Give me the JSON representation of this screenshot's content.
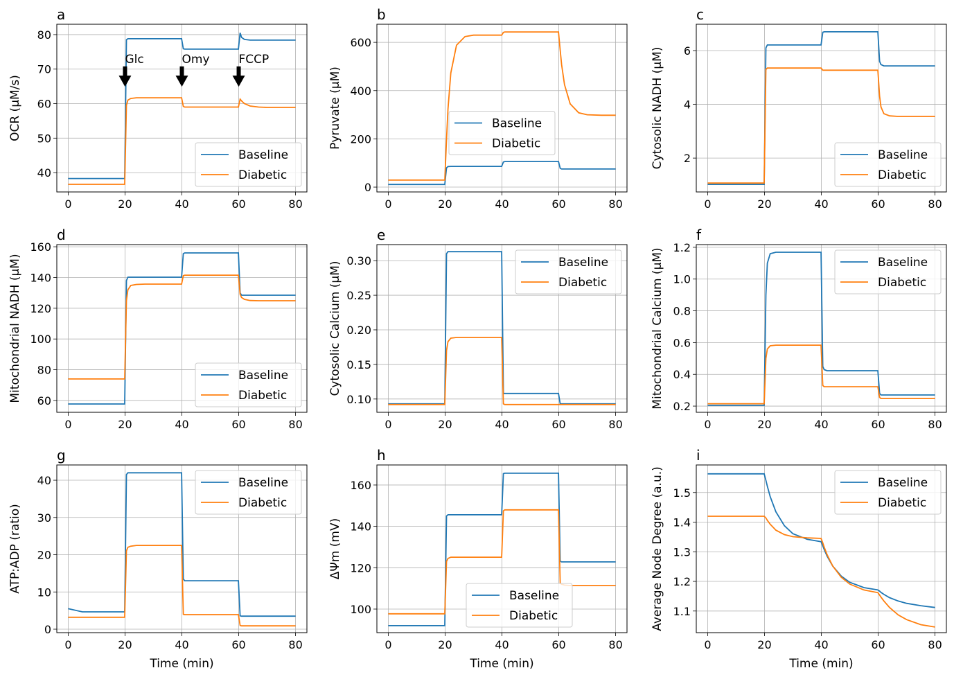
{
  "colors": {
    "Baseline": "#1f77b4",
    "Diabetic": "#ff7f0e",
    "grid": "#b0b0b0"
  },
  "shared_x": [
    0,
    5,
    10,
    15,
    19.9,
    20.5,
    21,
    22,
    24,
    27,
    30,
    35,
    39.9,
    40.5,
    41,
    42,
    44,
    47,
    50,
    55,
    59.9,
    60.5,
    61,
    62,
    64,
    67,
    70,
    75,
    80
  ],
  "chart_data": [
    {
      "panel": "a",
      "type": "line",
      "ylabel": "OCR (μM/s)",
      "xlabel": "",
      "xlim": [
        -4,
        84
      ],
      "ylim": [
        34.4,
        83
      ],
      "xticks": [
        0,
        20,
        40,
        60,
        80
      ],
      "yticks": [
        40,
        50,
        60,
        70,
        80
      ],
      "yticklabels": [
        "40",
        "50",
        "60",
        "70",
        "80"
      ],
      "grid": true,
      "legend": "lower right",
      "series": [
        {
          "name": "Baseline",
          "values": [
            38.3,
            38.3,
            38.3,
            38.3,
            38.3,
            78.5,
            78.8,
            78.8,
            78.8,
            78.8,
            78.8,
            78.8,
            78.8,
            75.9,
            75.8,
            75.8,
            75.8,
            75.8,
            75.8,
            75.8,
            75.8,
            80.5,
            79.2,
            78.6,
            78.4,
            78.4,
            78.4,
            78.4,
            78.4
          ]
        },
        {
          "name": "Diabetic",
          "values": [
            36.6,
            36.6,
            36.6,
            36.6,
            36.6,
            59.5,
            61,
            61.5,
            61.7,
            61.7,
            61.7,
            61.7,
            61.7,
            59.2,
            59,
            59,
            59,
            59,
            59,
            59,
            59,
            61.3,
            60.8,
            60,
            59.3,
            59,
            58.9,
            58.9,
            58.9
          ]
        }
      ],
      "annotations": [
        {
          "text": "Glc",
          "xy": [
            20,
            65.3
          ],
          "xytext": [
            20,
            73
          ]
        },
        {
          "text": "Omy",
          "xy": [
            40,
            65.3
          ],
          "xytext": [
            40,
            73
          ]
        },
        {
          "text": "FCCP",
          "xy": [
            60,
            65.3
          ],
          "xytext": [
            60,
            73
          ]
        }
      ]
    },
    {
      "panel": "b",
      "type": "line",
      "ylabel": "Pyruvate (μM)",
      "xlabel": "",
      "xlim": [
        -4,
        84
      ],
      "ylim": [
        -20,
        675
      ],
      "xticks": [
        0,
        20,
        40,
        60,
        80
      ],
      "yticks": [
        0,
        200,
        400,
        600
      ],
      "yticklabels": [
        "0",
        "200",
        "400",
        "600"
      ],
      "grid": true,
      "legend": "center left",
      "series": [
        {
          "name": "Baseline",
          "values": [
            11,
            11,
            11,
            11,
            11,
            80,
            85,
            86,
            86,
            86,
            86,
            86,
            86,
            104,
            106,
            106,
            106,
            106,
            106,
            106,
            106,
            78,
            75,
            75,
            75,
            75,
            75,
            75,
            75
          ]
        },
        {
          "name": "Diabetic",
          "values": [
            29,
            29,
            29,
            29,
            29,
            197,
            323,
            473,
            588,
            624,
            630,
            630,
            630,
            641,
            643,
            643,
            643,
            643,
            643,
            643,
            643,
            567,
            508,
            425,
            345,
            308,
            300,
            298,
            298
          ]
        }
      ]
    },
    {
      "panel": "c",
      "type": "line",
      "ylabel": "Cytosolic NADH (μM)",
      "xlabel": "",
      "xlim": [
        -4,
        84
      ],
      "ylim": [
        0.74,
        6.98
      ],
      "xticks": [
        0,
        20,
        40,
        60,
        80
      ],
      "yticks": [
        2,
        4,
        6
      ],
      "yticklabels": [
        "2",
        "4",
        "6"
      ],
      "grid": true,
      "legend": "lower right",
      "series": [
        {
          "name": "Baseline",
          "values": [
            1.02,
            1.02,
            1.02,
            1.02,
            1.02,
            6.1,
            6.21,
            6.21,
            6.21,
            6.21,
            6.21,
            6.21,
            6.21,
            6.68,
            6.7,
            6.7,
            6.7,
            6.7,
            6.7,
            6.7,
            6.7,
            5.6,
            5.48,
            5.43,
            5.43,
            5.43,
            5.43,
            5.43,
            5.43
          ]
        },
        {
          "name": "Diabetic",
          "values": [
            1.07,
            1.07,
            1.07,
            1.07,
            1.07,
            5.3,
            5.35,
            5.35,
            5.35,
            5.35,
            5.35,
            5.35,
            5.35,
            5.27,
            5.27,
            5.27,
            5.27,
            5.27,
            5.27,
            5.27,
            5.27,
            4.3,
            3.9,
            3.65,
            3.57,
            3.55,
            3.55,
            3.55,
            3.55
          ]
        }
      ]
    },
    {
      "panel": "d",
      "type": "line",
      "ylabel": "Mitochondrial NADH (μM)",
      "xlabel": "",
      "xlim": [
        -4,
        84
      ],
      "ylim": [
        52.3,
        161.4
      ],
      "xticks": [
        0,
        20,
        40,
        60,
        80
      ],
      "yticks": [
        60,
        80,
        100,
        120,
        140,
        160
      ],
      "yticklabels": [
        "60",
        "80",
        "100",
        "120",
        "140",
        "160"
      ],
      "grid": true,
      "legend": "lower right",
      "series": [
        {
          "name": "Baseline",
          "values": [
            57.7,
            57.7,
            57.7,
            57.7,
            57.7,
            138,
            140.2,
            140.2,
            140.2,
            140.2,
            140.2,
            140.2,
            140.2,
            155.5,
            156,
            156,
            156,
            156,
            156,
            156,
            156,
            130,
            128.5,
            128.5,
            128.5,
            128.5,
            128.5,
            128.5,
            128.5
          ]
        },
        {
          "name": "Diabetic",
          "values": [
            74,
            74,
            74,
            74,
            74,
            125,
            132,
            134.8,
            135.5,
            135.7,
            135.7,
            135.7,
            135.7,
            141.2,
            141.5,
            141.5,
            141.5,
            141.5,
            141.5,
            141.5,
            141.5,
            129,
            127,
            125.8,
            125,
            124.9,
            124.9,
            124.9,
            124.9
          ]
        }
      ]
    },
    {
      "panel": "e",
      "type": "line",
      "ylabel": "Cytosolic Calcium (μM)",
      "xlabel": "",
      "xlim": [
        -4,
        84
      ],
      "ylim": [
        0.0808,
        0.3232
      ],
      "xticks": [
        0,
        20,
        40,
        60,
        80
      ],
      "yticks": [
        0.1,
        0.15,
        0.2,
        0.25,
        0.3
      ],
      "yticklabels": [
        "0.10",
        "0.15",
        "0.20",
        "0.25",
        "0.30"
      ],
      "grid": true,
      "legend": "upper right",
      "series": [
        {
          "name": "Baseline",
          "values": [
            0.093,
            0.093,
            0.093,
            0.093,
            0.093,
            0.31,
            0.313,
            0.313,
            0.313,
            0.313,
            0.313,
            0.313,
            0.313,
            0.108,
            0.108,
            0.108,
            0.108,
            0.108,
            0.108,
            0.108,
            0.108,
            0.093,
            0.093,
            0.093,
            0.093,
            0.093,
            0.093,
            0.093,
            0.093
          ]
        },
        {
          "name": "Diabetic",
          "values": [
            0.092,
            0.092,
            0.092,
            0.092,
            0.092,
            0.17,
            0.183,
            0.188,
            0.189,
            0.189,
            0.189,
            0.189,
            0.189,
            0.093,
            0.092,
            0.092,
            0.092,
            0.092,
            0.092,
            0.092,
            0.092,
            0.092,
            0.092,
            0.092,
            0.092,
            0.092,
            0.092,
            0.092,
            0.092
          ]
        }
      ]
    },
    {
      "panel": "f",
      "type": "line",
      "ylabel": "Mitochondrial Calcium (μM)",
      "xlabel": "",
      "xlim": [
        -4,
        84
      ],
      "ylim": [
        0.161,
        1.217
      ],
      "xticks": [
        0,
        20,
        40,
        60,
        80
      ],
      "yticks": [
        0.2,
        0.4,
        0.6,
        0.8,
        1.0,
        1.2
      ],
      "yticklabels": [
        "0.2",
        "0.4",
        "0.6",
        "0.8",
        "1.0",
        "1.2"
      ],
      "grid": true,
      "legend": "upper right",
      "series": [
        {
          "name": "Baseline",
          "values": [
            0.205,
            0.205,
            0.205,
            0.205,
            0.205,
            0.9,
            1.1,
            1.16,
            1.169,
            1.169,
            1.169,
            1.169,
            1.169,
            0.45,
            0.43,
            0.423,
            0.423,
            0.423,
            0.423,
            0.423,
            0.423,
            0.28,
            0.27,
            0.27,
            0.27,
            0.27,
            0.27,
            0.27,
            0.27
          ]
        },
        {
          "name": "Diabetic",
          "values": [
            0.215,
            0.215,
            0.215,
            0.215,
            0.215,
            0.5,
            0.56,
            0.58,
            0.584,
            0.584,
            0.584,
            0.584,
            0.584,
            0.33,
            0.322,
            0.322,
            0.322,
            0.322,
            0.322,
            0.322,
            0.322,
            0.255,
            0.248,
            0.248,
            0.248,
            0.248,
            0.248,
            0.248,
            0.248
          ]
        }
      ]
    },
    {
      "panel": "g",
      "type": "line",
      "ylabel": "ATP:ADP (ratio)",
      "xlabel": "Time (min)",
      "xlim": [
        -4,
        84
      ],
      "ylim": [
        -0.93,
        44.1
      ],
      "xticks": [
        0,
        20,
        40,
        60,
        80
      ],
      "yticks": [
        0,
        10,
        20,
        30,
        40
      ],
      "yticklabels": [
        "0",
        "10",
        "20",
        "30",
        "40"
      ],
      "grid": true,
      "legend": "upper right",
      "series": [
        {
          "name": "Baseline",
          "values": [
            5.5,
            4.65,
            4.65,
            4.65,
            4.65,
            41.5,
            42,
            42,
            42,
            42,
            42,
            42,
            42,
            13.5,
            13,
            13,
            13,
            13,
            13,
            13,
            13,
            3.6,
            3.5,
            3.5,
            3.5,
            3.5,
            3.5,
            3.5,
            3.5
          ]
        },
        {
          "name": "Diabetic",
          "values": [
            3.2,
            3.2,
            3.2,
            3.2,
            3.2,
            21,
            22,
            22.3,
            22.5,
            22.5,
            22.5,
            22.5,
            22.5,
            4,
            3.9,
            3.9,
            3.9,
            3.9,
            3.9,
            3.9,
            3.9,
            1,
            0.9,
            0.9,
            0.9,
            0.9,
            0.9,
            0.9,
            0.9
          ]
        }
      ]
    },
    {
      "panel": "h",
      "type": "line",
      "ylabel": "ΔΨm (mV)",
      "xlabel": "Time (min)",
      "xlim": [
        -4,
        84
      ],
      "ylim": [
        88.6,
        169.7
      ],
      "xticks": [
        0,
        20,
        40,
        60,
        80
      ],
      "yticks": [
        100,
        120,
        140,
        160
      ],
      "yticklabels": [
        "100",
        "120",
        "140",
        "160"
      ],
      "grid": true,
      "legend": "lower center",
      "series": [
        {
          "name": "Baseline",
          "values": [
            92,
            92,
            92,
            92,
            92,
            145,
            145.6,
            145.6,
            145.6,
            145.6,
            145.6,
            145.6,
            145.6,
            165.5,
            165.7,
            165.7,
            165.7,
            165.7,
            165.7,
            165.7,
            165.7,
            123.2,
            122.8,
            122.8,
            122.8,
            122.8,
            122.8,
            122.8,
            122.8
          ]
        },
        {
          "name": "Diabetic",
          "values": [
            97.7,
            97.7,
            97.7,
            97.7,
            97.7,
            123,
            124.5,
            125.1,
            125.1,
            125.1,
            125.1,
            125.1,
            125.1,
            147.5,
            148,
            148,
            148,
            148,
            148,
            148,
            148,
            112.5,
            112,
            111.6,
            111.4,
            111.4,
            111.4,
            111.4,
            111.4
          ]
        }
      ]
    },
    {
      "panel": "i",
      "type": "line",
      "ylabel": "Average Node Degree (a.u.)",
      "xlabel": "Time (min)",
      "xlim": [
        -4,
        84
      ],
      "ylim": [
        1.027,
        1.593
      ],
      "xticks": [
        0,
        20,
        40,
        60,
        80
      ],
      "yticks": [
        1.1,
        1.2,
        1.3,
        1.4,
        1.5
      ],
      "yticklabels": [
        "1.1",
        "1.2",
        "1.3",
        "1.4",
        "1.5"
      ],
      "grid": true,
      "legend": "upper right",
      "series": [
        {
          "name": "Baseline",
          "values": [
            1.563,
            1.563,
            1.563,
            1.563,
            1.563,
            1.541,
            1.521,
            1.486,
            1.435,
            1.388,
            1.361,
            1.342,
            1.334,
            1.32,
            1.308,
            1.286,
            1.252,
            1.218,
            1.197,
            1.179,
            1.171,
            1.167,
            1.163,
            1.156,
            1.145,
            1.134,
            1.126,
            1.118,
            1.112
          ]
        },
        {
          "name": "Diabetic",
          "values": [
            1.42,
            1.42,
            1.42,
            1.42,
            1.42,
            1.414,
            1.406,
            1.393,
            1.373,
            1.358,
            1.351,
            1.347,
            1.345,
            1.33,
            1.316,
            1.291,
            1.252,
            1.214,
            1.191,
            1.171,
            1.162,
            1.154,
            1.147,
            1.134,
            1.112,
            1.087,
            1.071,
            1.054,
            1.046
          ]
        }
      ]
    }
  ]
}
